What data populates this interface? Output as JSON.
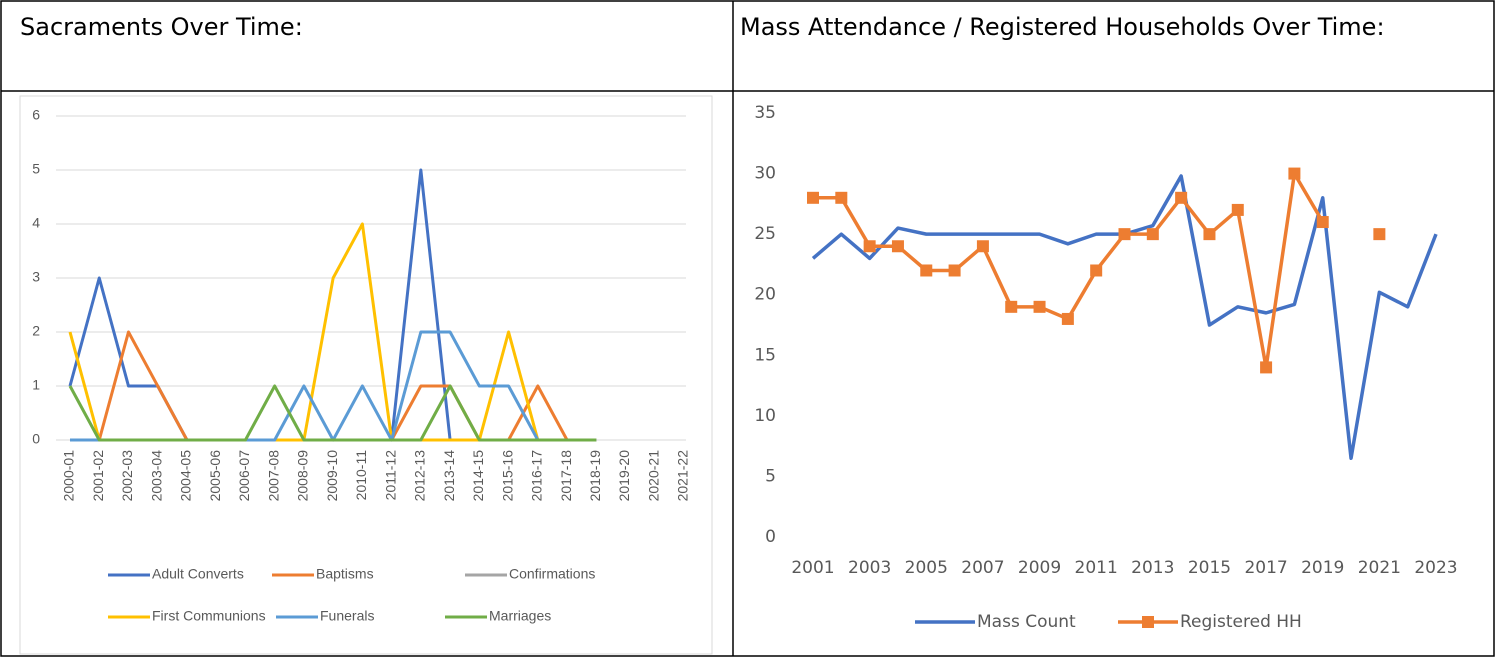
{
  "table": {
    "headers": [
      "Sacraments Over Time:",
      "Mass Attendance / Registered Households Over Time:"
    ]
  },
  "chart_data": [
    {
      "type": "line",
      "categories": [
        "2000-01",
        "2001-02",
        "2002-03",
        "2003-04",
        "2004-05",
        "2005-06",
        "2006-07",
        "2007-08",
        "2008-09",
        "2009-10",
        "2010-11",
        "2011-12",
        "2012-13",
        "2013-14",
        "2014-15",
        "2015-16",
        "2016-17",
        "2017-18",
        "2018-19",
        "2019-20",
        "2020-21",
        "2021-22"
      ],
      "series": [
        {
          "name": "Adult Converts",
          "color": "#4472c4",
          "values": [
            1,
            3,
            1,
            1,
            0,
            0,
            0,
            0,
            0,
            0,
            0,
            0,
            5,
            0,
            0,
            0,
            0,
            0,
            0,
            null,
            null,
            null
          ]
        },
        {
          "name": "Baptisms",
          "color": "#ed7d31",
          "values": [
            0,
            0,
            2,
            1,
            0,
            0,
            0,
            0,
            0,
            0,
            0,
            0,
            1,
            1,
            0,
            0,
            1,
            0,
            0,
            null,
            null,
            null
          ]
        },
        {
          "name": "Confirmations",
          "color": "#a5a5a5",
          "values": [
            0,
            0,
            0,
            0,
            0,
            0,
            0,
            0,
            0,
            0,
            0,
            0,
            0,
            0,
            0,
            0,
            0,
            0,
            0,
            null,
            null,
            null
          ]
        },
        {
          "name": "First Communions",
          "color": "#ffc000",
          "values": [
            2,
            0,
            0,
            0,
            0,
            0,
            0,
            0,
            0,
            3,
            4,
            0,
            0,
            0,
            0,
            2,
            0,
            0,
            0,
            null,
            null,
            null
          ]
        },
        {
          "name": "Funerals",
          "color": "#5b9bd5",
          "values": [
            0,
            0,
            0,
            0,
            0,
            0,
            0,
            0,
            1,
            0,
            1,
            0,
            2,
            2,
            1,
            1,
            0,
            0,
            0,
            null,
            null,
            null
          ]
        },
        {
          "name": "Marriages",
          "color": "#70ad47",
          "values": [
            1,
            0,
            0,
            0,
            0,
            0,
            0,
            1,
            0,
            0,
            0,
            0,
            0,
            1,
            0,
            0,
            0,
            0,
            0,
            null,
            null,
            null
          ]
        }
      ],
      "ylim": [
        0,
        6
      ],
      "yticks": [
        0,
        1,
        2,
        3,
        4,
        5,
        6
      ],
      "grid": true,
      "legend": "bottom"
    },
    {
      "type": "line",
      "x": [
        2001,
        2002,
        2003,
        2004,
        2005,
        2006,
        2007,
        2008,
        2009,
        2010,
        2011,
        2012,
        2013,
        2014,
        2015,
        2016,
        2017,
        2018,
        2019,
        2020,
        2021,
        2022,
        2023
      ],
      "series": [
        {
          "name": "Mass Count",
          "color": "#4472c4",
          "values": [
            23,
            25,
            23,
            25.5,
            25,
            25,
            25,
            25,
            25,
            24.2,
            25,
            25,
            25.7,
            29.8,
            17.5,
            19,
            18.5,
            19.2,
            28,
            6.5,
            20.2,
            19,
            25
          ]
        },
        {
          "name": "Registered HH",
          "color": "#ed7d31",
          "marker": "square",
          "values": [
            28,
            28,
            24,
            24,
            22,
            22,
            24,
            19,
            19,
            18,
            22,
            25,
            25,
            28,
            25,
            27,
            14,
            30,
            26,
            null,
            25,
            null,
            null
          ]
        }
      ],
      "xlim": [
        2001,
        2023
      ],
      "xticks": [
        2001,
        2003,
        2005,
        2007,
        2009,
        2011,
        2013,
        2015,
        2017,
        2019,
        2021,
        2023
      ],
      "ylim": [
        0,
        35
      ],
      "yticks": [
        0,
        5,
        10,
        15,
        20,
        25,
        30,
        35
      ],
      "grid": false,
      "legend": "bottom"
    }
  ]
}
